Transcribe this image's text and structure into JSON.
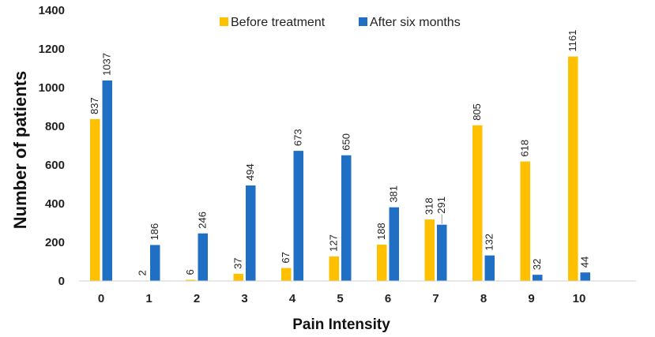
{
  "chart_data": {
    "type": "bar",
    "title": "",
    "xlabel": "Pain Intensity",
    "ylabel": "Number of patients",
    "categories": [
      "0",
      "1",
      "2",
      "3",
      "4",
      "5",
      "6",
      "7",
      "8",
      "9",
      "10"
    ],
    "series": [
      {
        "name": "Before treatment",
        "color": "#FFC000",
        "values": [
          837,
          2,
          6,
          37,
          67,
          127,
          188,
          318,
          805,
          618,
          1161
        ]
      },
      {
        "name": "After six months",
        "color": "#1F6FC5",
        "values": [
          1037,
          186,
          246,
          494,
          673,
          650,
          381,
          291,
          132,
          32,
          44
        ]
      }
    ],
    "ylim": [
      0,
      1400
    ],
    "yticks": [
      0,
      200,
      400,
      600,
      800,
      1000,
      1200,
      1400
    ],
    "grid": false,
    "legend_position": "top-center",
    "data_labels": "rotated-vertical"
  }
}
